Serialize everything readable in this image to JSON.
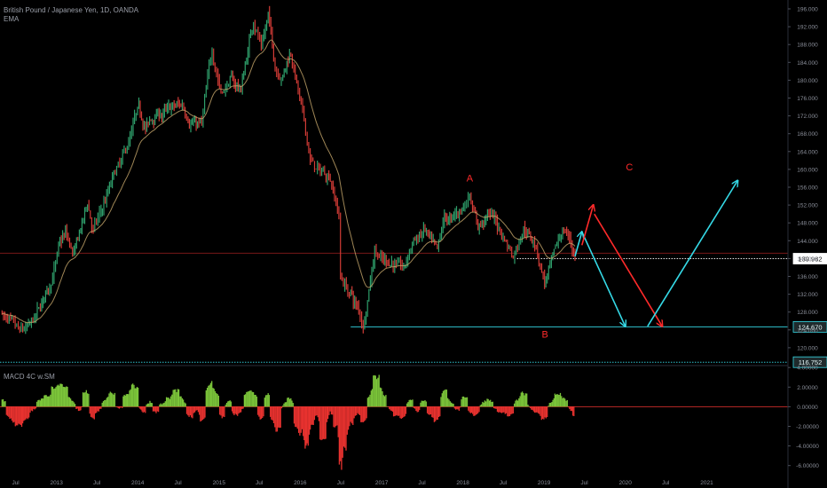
{
  "legend": {
    "symbol_title": "British Pound / Japanese Yen, 1D, OANDA",
    "ema_label": "EMA",
    "macd_label": "MACD 4C w.SM"
  },
  "colors": {
    "background": "#000000",
    "candle_up": "#2e9e6a",
    "candle_down": "#d23b36",
    "ema": "#c7a86b",
    "cyan": "#35d9e6",
    "red": "#ff2a2a",
    "macd_up": "#7cc63a",
    "macd_down": "#e8322f",
    "axis_text": "#8a8e99"
  },
  "chart_data": {
    "type": "line",
    "title": "British Pound / Japanese Yen, 1D, OANDA",
    "price_panel": {
      "y_ticks": [
        "196.000",
        "192.000",
        "188.000",
        "184.000",
        "180.000",
        "176.000",
        "172.000",
        "168.000",
        "164.000",
        "160.000",
        "156.000",
        "152.000",
        "148.000",
        "144.000",
        "140.000",
        "136.000",
        "132.000",
        "128.000",
        "124.000",
        "120.000"
      ],
      "y_range": [
        116.0,
        198.0
      ],
      "grid": false,
      "series_points": [
        [
          "2012-05-01",
          128
        ],
        [
          "2012-06-15",
          124
        ],
        [
          "2012-07-20",
          122
        ],
        [
          "2012-09-10",
          124
        ],
        [
          "2012-10-20",
          128
        ],
        [
          "2012-12-01",
          134
        ],
        [
          "2013-01-10",
          142
        ],
        [
          "2013-02-10",
          145
        ],
        [
          "2013-03-20",
          140
        ],
        [
          "2013-05-20",
          152
        ],
        [
          "2013-06-15",
          146
        ],
        [
          "2013-07-20",
          150
        ],
        [
          "2013-09-15",
          158
        ],
        [
          "2013-11-01",
          162
        ],
        [
          "2013-12-31",
          172
        ],
        [
          "2014-02-05",
          169
        ],
        [
          "2014-04-01",
          172
        ],
        [
          "2014-06-01",
          173
        ],
        [
          "2014-07-20",
          174
        ],
        [
          "2014-08-15",
          172
        ],
        [
          "2014-10-15",
          170
        ],
        [
          "2014-12-01",
          186
        ],
        [
          "2015-01-10",
          178
        ],
        [
          "2015-02-20",
          180
        ],
        [
          "2015-04-10",
          178
        ],
        [
          "2015-06-05",
          194
        ],
        [
          "2015-07-10",
          188
        ],
        [
          "2015-08-10",
          195
        ],
        [
          "2015-09-10",
          183
        ],
        [
          "2015-10-15",
          182
        ],
        [
          "2015-11-20",
          187
        ],
        [
          "2016-01-05",
          174
        ],
        [
          "2016-02-15",
          162
        ],
        [
          "2016-03-25",
          159
        ],
        [
          "2016-05-15",
          159
        ],
        [
          "2016-06-23",
          150
        ],
        [
          "2016-06-30",
          136
        ],
        [
          "2016-08-15",
          132
        ],
        [
          "2016-09-20",
          128
        ],
        [
          "2016-10-10",
          124.67
        ],
        [
          "2016-12-01",
          143
        ],
        [
          "2017-01-10",
          140
        ],
        [
          "2017-02-15",
          140
        ],
        [
          "2017-04-10",
          137
        ],
        [
          "2017-05-25",
          144
        ],
        [
          "2017-07-15",
          146
        ],
        [
          "2017-09-08",
          140
        ],
        [
          "2017-10-10",
          148
        ],
        [
          "2017-11-15",
          148
        ],
        [
          "2018-01-10",
          152
        ],
        [
          "2018-02-01",
          155
        ],
        [
          "2018-03-10",
          148
        ],
        [
          "2018-05-10",
          150
        ],
        [
          "2018-07-01",
          145
        ],
        [
          "2018-08-15",
          141
        ],
        [
          "2018-10-01",
          148
        ],
        [
          "2018-11-20",
          144
        ],
        [
          "2019-01-03",
          135
        ],
        [
          "2019-02-15",
          140
        ],
        [
          "2019-03-25",
          146
        ],
        [
          "2019-04-25",
          145
        ],
        [
          "2019-05-20",
          140
        ]
      ],
      "horizontal_levels": [
        {
          "value": 139.982,
          "label": "139.982",
          "style": "dotted",
          "color": "#ffffff"
        },
        {
          "value": 141.2,
          "label": "",
          "style": "solid",
          "color": "#c62828"
        },
        {
          "value": 124.67,
          "label": "124.670",
          "style": "solid",
          "color": "#35d9e6"
        },
        {
          "value": 116.752,
          "label": "116.752",
          "style": "dotted",
          "color": "#35d9e6"
        }
      ],
      "annotations": [
        {
          "text": "A",
          "x": "2018-02-01",
          "y": 157.3,
          "color": "#ff2a2a"
        },
        {
          "text": "B",
          "x": "2019-01-05",
          "y": 122.3,
          "color": "#ff2a2a"
        },
        {
          "text": "C",
          "x": "2020-01-20",
          "y": 159.8,
          "color": "#ff2a2a"
        }
      ],
      "arrows": [
        {
          "from": [
            "2019-05-20",
            140.5
          ],
          "to": [
            "2019-06-20",
            146
          ],
          "color": "#35d9e6"
        },
        {
          "from": [
            "2019-06-20",
            146
          ],
          "to": [
            "2020-01-01",
            124.8
          ],
          "color": "#35d9e6"
        },
        {
          "from": [
            "2019-06-20",
            143
          ],
          "to": [
            "2019-08-10",
            152
          ],
          "color": "#ff2a2a"
        },
        {
          "from": [
            "2019-08-15",
            150
          ],
          "to": [
            "2020-06-15",
            124.8
          ],
          "color": "#ff2a2a"
        },
        {
          "from": [
            "2020-04-10",
            124.8
          ],
          "to": [
            "2021-05-20",
            157.5
          ],
          "color": "#35d9e6"
        }
      ]
    },
    "macd_panel": {
      "y_ticks": [
        "4.00000",
        "2.00000",
        "0.00000",
        "-2.00000",
        "-4.00000",
        "-6.00000"
      ],
      "y_range": [
        -7.2,
        4.2
      ],
      "histogram": [
        [
          "2012-05-01",
          1.0
        ],
        [
          "2012-06-10",
          -1.5
        ],
        [
          "2012-07-15",
          -2.2
        ],
        [
          "2012-08-20",
          -1.4
        ],
        [
          "2012-09-20",
          -0.3
        ],
        [
          "2012-10-20",
          0.8
        ],
        [
          "2012-11-25",
          1.2
        ],
        [
          "2012-12-25",
          2.2
        ],
        [
          "2013-02-05",
          2.4
        ],
        [
          "2013-03-15",
          0.6
        ],
        [
          "2013-04-15",
          -0.5
        ],
        [
          "2013-05-15",
          2.0
        ],
        [
          "2013-06-10",
          -1.4
        ],
        [
          "2013-07-10",
          -0.5
        ],
        [
          "2013-08-10",
          0.8
        ],
        [
          "2013-09-10",
          1.7
        ],
        [
          "2013-10-10",
          -0.4
        ],
        [
          "2013-11-15",
          1.5
        ],
        [
          "2013-12-20",
          2.5
        ],
        [
          "2014-01-25",
          -0.8
        ],
        [
          "2014-02-25",
          0.6
        ],
        [
          "2014-03-25",
          -0.7
        ],
        [
          "2014-04-25",
          0.5
        ],
        [
          "2014-05-25",
          1.0
        ],
        [
          "2014-06-25",
          2.0
        ],
        [
          "2014-07-25",
          0.8
        ],
        [
          "2014-08-25",
          -1.2
        ],
        [
          "2014-09-25",
          -0.5
        ],
        [
          "2014-10-20",
          -1.8
        ],
        [
          "2014-11-20",
          2.8
        ],
        [
          "2014-12-20",
          1.8
        ],
        [
          "2015-01-15",
          -1.4
        ],
        [
          "2015-02-15",
          0.8
        ],
        [
          "2015-03-15",
          -1.0
        ],
        [
          "2015-04-10",
          -0.6
        ],
        [
          "2015-05-10",
          1.8
        ],
        [
          "2015-06-10",
          1.5
        ],
        [
          "2015-07-10",
          -1.6
        ],
        [
          "2015-08-10",
          1.7
        ],
        [
          "2015-08-30",
          -1.8
        ],
        [
          "2015-09-25",
          -2.8
        ],
        [
          "2015-10-20",
          0.4
        ],
        [
          "2015-11-20",
          1.0
        ],
        [
          "2015-12-15",
          -2.5
        ],
        [
          "2016-01-10",
          -3.0
        ],
        [
          "2016-02-01",
          -4.6
        ],
        [
          "2016-02-20",
          -2.2
        ],
        [
          "2016-03-15",
          -1.0
        ],
        [
          "2016-04-15",
          -4.0
        ],
        [
          "2016-05-15",
          -0.6
        ],
        [
          "2016-06-15",
          -2.5
        ],
        [
          "2016-06-30",
          -6.9
        ],
        [
          "2016-07-15",
          -5.0
        ],
        [
          "2016-08-15",
          -2.0
        ],
        [
          "2016-09-15",
          -0.8
        ],
        [
          "2016-10-15",
          -1.8
        ],
        [
          "2016-11-10",
          1.5
        ],
        [
          "2016-12-10",
          3.6
        ],
        [
          "2017-01-10",
          1.5
        ],
        [
          "2017-02-10",
          -0.5
        ],
        [
          "2017-03-10",
          -1.0
        ],
        [
          "2017-04-10",
          -1.2
        ],
        [
          "2017-05-10",
          1.0
        ],
        [
          "2017-06-10",
          -0.6
        ],
        [
          "2017-07-10",
          0.9
        ],
        [
          "2017-08-10",
          -1.1
        ],
        [
          "2017-09-10",
          -1.6
        ],
        [
          "2017-10-10",
          2.0
        ],
        [
          "2017-11-10",
          0.6
        ],
        [
          "2017-12-10",
          -0.5
        ],
        [
          "2018-01-10",
          1.3
        ],
        [
          "2018-02-05",
          -0.7
        ],
        [
          "2018-03-05",
          -0.9
        ],
        [
          "2018-04-05",
          0.6
        ],
        [
          "2018-05-05",
          0.8
        ],
        [
          "2018-06-05",
          -0.5
        ],
        [
          "2018-07-05",
          -0.7
        ],
        [
          "2018-08-05",
          -1.1
        ],
        [
          "2018-09-05",
          0.9
        ],
        [
          "2018-10-05",
          1.6
        ],
        [
          "2018-11-05",
          -0.3
        ],
        [
          "2018-12-05",
          -0.8
        ],
        [
          "2019-01-05",
          -1.4
        ],
        [
          "2019-02-05",
          0.7
        ],
        [
          "2019-03-05",
          1.4
        ],
        [
          "2019-04-05",
          0.9
        ],
        [
          "2019-05-01",
          -0.4
        ],
        [
          "2019-05-20",
          -1.0
        ]
      ]
    },
    "x_ticks": [
      {
        "label": "Jul",
        "date": "2012-07-01"
      },
      {
        "label": "2013",
        "date": "2013-01-01"
      },
      {
        "label": "Jul",
        "date": "2013-07-01"
      },
      {
        "label": "2014",
        "date": "2014-01-01"
      },
      {
        "label": "Jul",
        "date": "2014-07-01"
      },
      {
        "label": "2015",
        "date": "2015-01-01"
      },
      {
        "label": "Jul",
        "date": "2015-07-01"
      },
      {
        "label": "2016",
        "date": "2016-01-01"
      },
      {
        "label": "Jul",
        "date": "2016-07-01"
      },
      {
        "label": "2017",
        "date": "2017-01-01"
      },
      {
        "label": "Jul",
        "date": "2017-07-01"
      },
      {
        "label": "2018",
        "date": "2018-01-01"
      },
      {
        "label": "Jul",
        "date": "2018-07-01"
      },
      {
        "label": "2019",
        "date": "2019-01-01"
      },
      {
        "label": "Jul",
        "date": "2019-07-01"
      },
      {
        "label": "2020",
        "date": "2020-01-01"
      },
      {
        "label": "Jul",
        "date": "2020-07-01"
      },
      {
        "label": "2021",
        "date": "2021-01-01"
      }
    ],
    "x_range": [
      "2012-04-22",
      "2022-01-01"
    ]
  }
}
